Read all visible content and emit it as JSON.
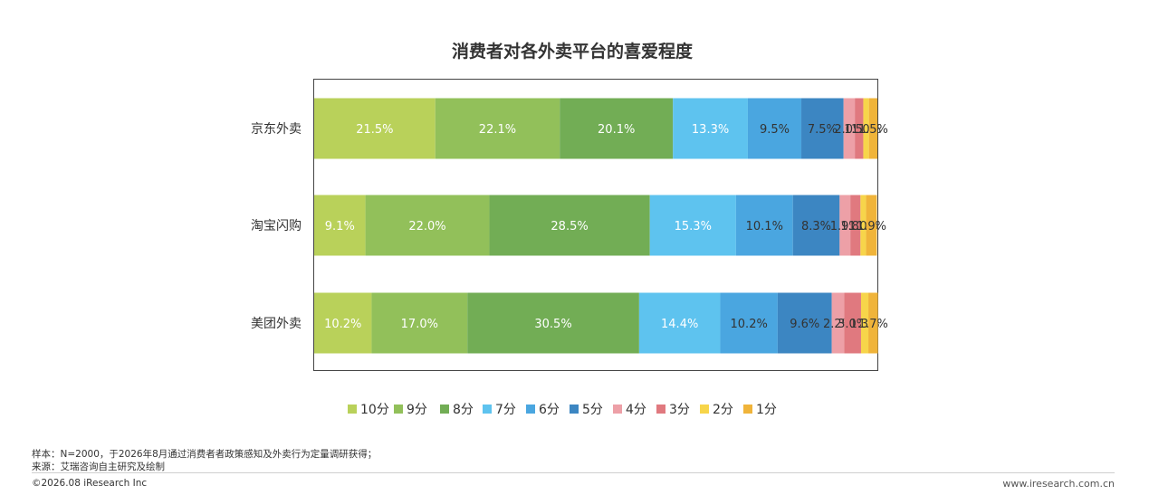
{
  "chart_data": {
    "type": "bar",
    "orientation": "horizontal",
    "stacked": true,
    "percent": true,
    "title": "消费者对各外卖平台的喜爱程度",
    "categories": [
      "京东外卖",
      "淘宝闪购",
      "美团外卖"
    ],
    "series": [
      {
        "name": "10分",
        "color": "#b9d15a",
        "values": [
          21.5,
          9.1,
          10.2
        ],
        "labels": [
          "21.5%",
          "9.1%",
          "10.2%"
        ]
      },
      {
        "name": "9分",
        "color": "#92c05a",
        "values": [
          22.1,
          22.0,
          17.0
        ],
        "labels": [
          "22.1%",
          "22.0%",
          "17.0%"
        ]
      },
      {
        "name": "8分",
        "color": "#72ad55",
        "values": [
          20.1,
          28.5,
          30.5
        ],
        "labels": [
          "20.1%",
          "28.5%",
          "30.5%"
        ]
      },
      {
        "name": "7分",
        "color": "#5ec3ef",
        "values": [
          13.3,
          15.3,
          14.4
        ],
        "labels": [
          "13.3%",
          "15.3%",
          "14.4%"
        ]
      },
      {
        "name": "6分",
        "color": "#4aa6e0",
        "values": [
          9.5,
          10.1,
          10.2
        ],
        "labels": [
          "9.5%",
          "10.1%",
          "10.2%"
        ]
      },
      {
        "name": "5分",
        "color": "#3c86c2",
        "values": [
          7.5,
          8.3,
          9.6
        ],
        "labels": [
          "7.5%",
          "8.3%",
          "9.6%"
        ]
      },
      {
        "name": "4分",
        "color": "#eda0a7",
        "values": [
          2.0,
          1.9,
          2.2
        ],
        "labels": [
          "2.0%",
          "1.9%",
          "2.2%"
        ]
      },
      {
        "name": "3分",
        "color": "#e0797f",
        "values": [
          1.5,
          1.8,
          3.0
        ],
        "labels": [
          "1.5%",
          "1.8%",
          "3.0%"
        ]
      },
      {
        "name": "2分",
        "color": "#f7d54a",
        "values": [
          1.0,
          1.0,
          1.3
        ],
        "labels": [
          "1.0%",
          "1.0%",
          "1.3%"
        ]
      },
      {
        "name": "1分",
        "color": "#f0b43a",
        "values": [
          1.5,
          1.9,
          1.7
        ],
        "labels": [
          "1.5%",
          "1.9%",
          "1.7%"
        ]
      }
    ],
    "xlim": [
      0,
      100
    ],
    "grid": false,
    "legend": "bottom"
  },
  "footer": {
    "sample_note": "样本：N=2000，于2026年8月通过消费者者政策感知及外卖行为定量调研获得；",
    "source_note": "来源：艾瑞咨询自主研究及绘制",
    "copyright": "©2026.08 iResearch Inc",
    "website": "www.iresearch.com.cn"
  }
}
